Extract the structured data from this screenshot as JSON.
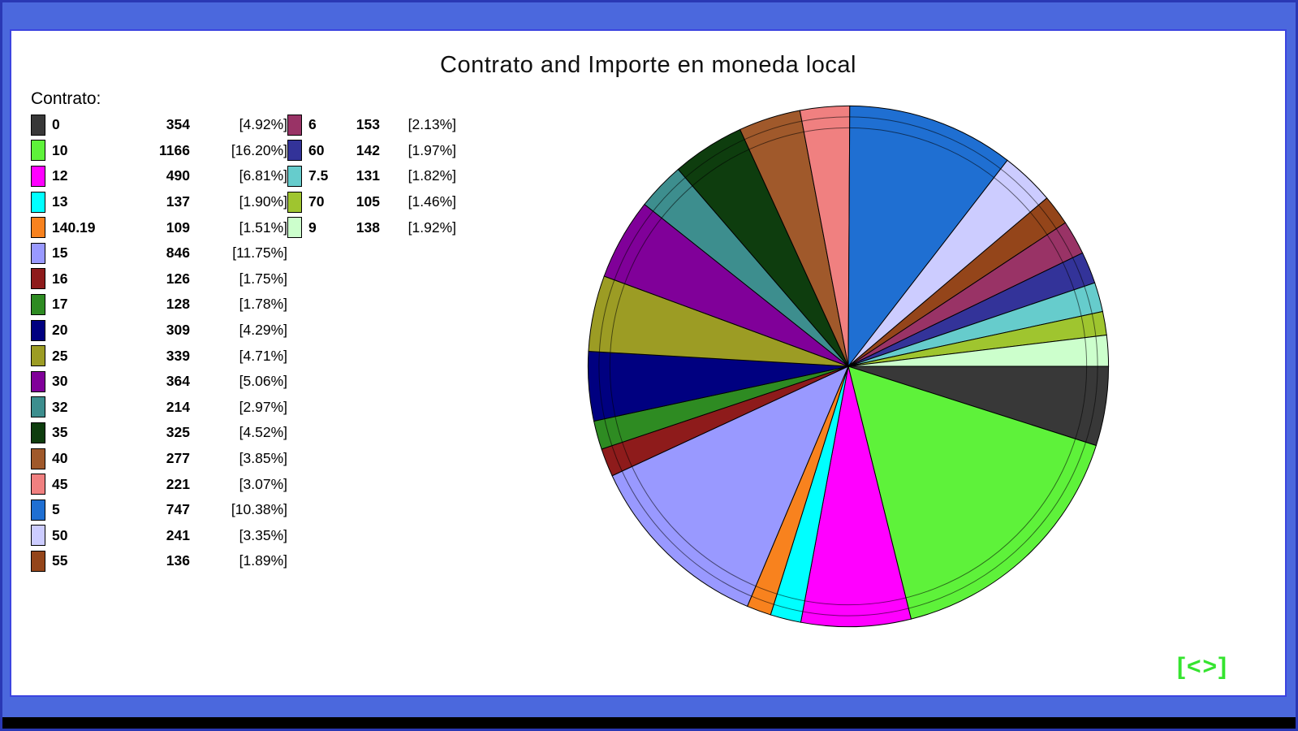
{
  "colors": {
    "background": "#4b68dd",
    "outer_border": "#2a38b4",
    "panel_border": "#3c44e0",
    "panel_background": "#ffffff",
    "bottom_bar": "#000000",
    "footer_green": "#35e42f"
  },
  "footer": {
    "nav_label": "[<>]"
  },
  "chart_data": {
    "type": "pie",
    "title": "Contrato and Importe en moneda local",
    "legend_title": "Contrato:",
    "legend_position": "top-left",
    "start_angle": "east",
    "direction": "clockwise",
    "legend_columns": [
      18,
      5
    ],
    "inner_ring_radii": [
      0.958,
      0.916
    ],
    "slices": [
      {
        "label": "0",
        "value": 354,
        "pct": 4.92,
        "pct_label": "[4.92%]",
        "color": "#383838"
      },
      {
        "label": "10",
        "value": 1166,
        "pct": 16.2,
        "pct_label": "[16.20%]",
        "color": "#5ef23a"
      },
      {
        "label": "12",
        "value": 490,
        "pct": 6.81,
        "pct_label": "[6.81%]",
        "color": "#ff00ff"
      },
      {
        "label": "13",
        "value": 137,
        "pct": 1.9,
        "pct_label": "[1.90%]",
        "color": "#00ffff"
      },
      {
        "label": "140.19",
        "value": 109,
        "pct": 1.51,
        "pct_label": "[1.51%]",
        "color": "#f8821e"
      },
      {
        "label": "15",
        "value": 846,
        "pct": 11.75,
        "pct_label": "[11.75%]",
        "color": "#9999ff"
      },
      {
        "label": "16",
        "value": 126,
        "pct": 1.75,
        "pct_label": "[1.75%]",
        "color": "#8e1b1b"
      },
      {
        "label": "17",
        "value": 128,
        "pct": 1.78,
        "pct_label": "[1.78%]",
        "color": "#2e8b22"
      },
      {
        "label": "20",
        "value": 309,
        "pct": 4.29,
        "pct_label": "[4.29%]",
        "color": "#000080"
      },
      {
        "label": "25",
        "value": 339,
        "pct": 4.71,
        "pct_label": "[4.71%]",
        "color": "#9c9c24"
      },
      {
        "label": "30",
        "value": 364,
        "pct": 5.06,
        "pct_label": "[5.06%]",
        "color": "#800099"
      },
      {
        "label": "32",
        "value": 214,
        "pct": 2.97,
        "pct_label": "[2.97%]",
        "color": "#3d8e8e"
      },
      {
        "label": "35",
        "value": 325,
        "pct": 4.52,
        "pct_label": "[4.52%]",
        "color": "#0e3d0e"
      },
      {
        "label": "40",
        "value": 277,
        "pct": 3.85,
        "pct_label": "[3.85%]",
        "color": "#a0592b"
      },
      {
        "label": "45",
        "value": 221,
        "pct": 3.07,
        "pct_label": "[3.07%]",
        "color": "#f08080"
      },
      {
        "label": "5",
        "value": 747,
        "pct": 10.38,
        "pct_label": "[10.38%]",
        "color": "#1f6fd2"
      },
      {
        "label": "50",
        "value": 241,
        "pct": 3.35,
        "pct_label": "[3.35%]",
        "color": "#ccccff"
      },
      {
        "label": "55",
        "value": 136,
        "pct": 1.89,
        "pct_label": "[1.89%]",
        "color": "#94451a"
      },
      {
        "label": "6",
        "value": 153,
        "pct": 2.13,
        "pct_label": "[2.13%]",
        "color": "#993366"
      },
      {
        "label": "60",
        "value": 142,
        "pct": 1.97,
        "pct_label": "[1.97%]",
        "color": "#333399"
      },
      {
        "label": "7.5",
        "value": 131,
        "pct": 1.82,
        "pct_label": "[1.82%]",
        "color": "#66cccc"
      },
      {
        "label": "70",
        "value": 105,
        "pct": 1.46,
        "pct_label": "[1.46%]",
        "color": "#9fc52f"
      },
      {
        "label": "9",
        "value": 138,
        "pct": 1.92,
        "pct_label": "[1.92%]",
        "color": "#ccffcc"
      }
    ]
  }
}
